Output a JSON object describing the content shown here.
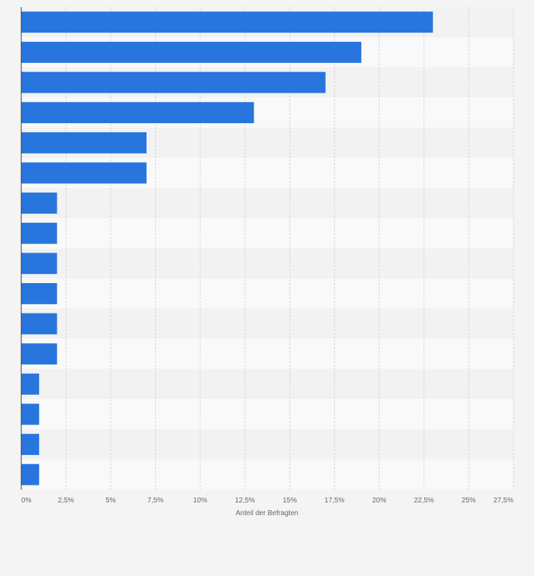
{
  "chart_data": {
    "type": "bar",
    "orientation": "horizontal",
    "categories": [
      "",
      "",
      "",
      "",
      "",
      "",
      "",
      "",
      "",
      "",
      "",
      "",
      "",
      "",
      "",
      ""
    ],
    "values": [
      23,
      19,
      17,
      13,
      7,
      7,
      2,
      2,
      2,
      2,
      2,
      2,
      1,
      1,
      1,
      1
    ],
    "xlabel": "Anteil der Befragten",
    "ylabel": "",
    "xlim": [
      0,
      27.5
    ],
    "ticks": [
      {
        "value": 0,
        "label": "0%"
      },
      {
        "value": 2.5,
        "label": "2,5%"
      },
      {
        "value": 5,
        "label": "5%"
      },
      {
        "value": 7.5,
        "label": "7,5%"
      },
      {
        "value": 10,
        "label": "10%"
      },
      {
        "value": 12.5,
        "label": "12,5%"
      },
      {
        "value": 15,
        "label": "15%"
      },
      {
        "value": 17.5,
        "label": "17,5%"
      },
      {
        "value": 20,
        "label": "20%"
      },
      {
        "value": 22.5,
        "label": "22,5%"
      },
      {
        "value": 25,
        "label": "25%"
      },
      {
        "value": 27.5,
        "label": "27,5%"
      }
    ],
    "grid": true,
    "bar_color": "#2876dd",
    "band_colors": [
      "#f2f2f2",
      "#f9f9f9"
    ],
    "gridline_color": "#d4d4d4",
    "text_color": "#666666"
  }
}
